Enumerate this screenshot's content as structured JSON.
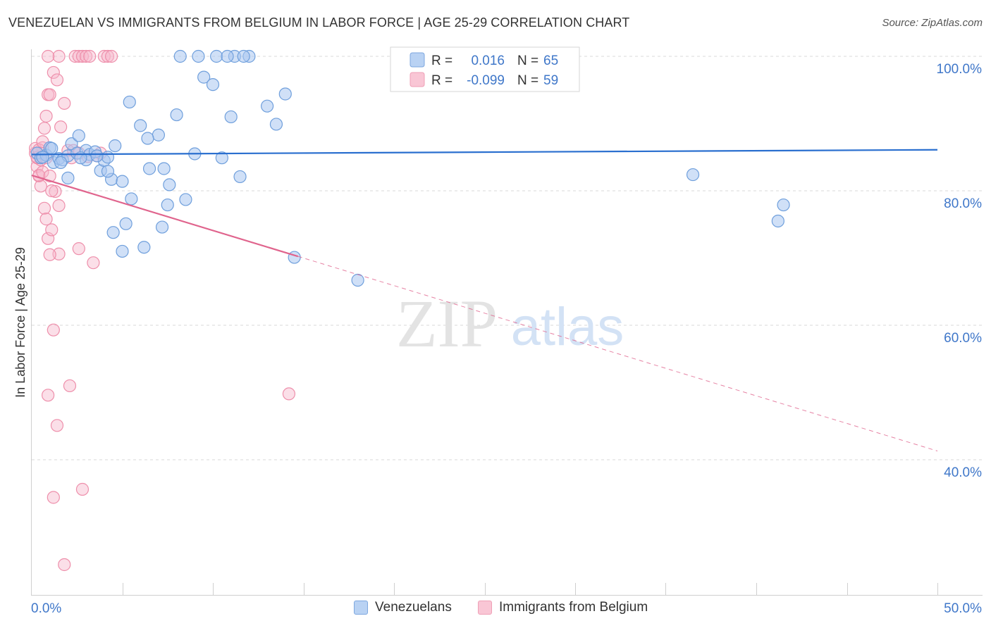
{
  "title": "VENEZUELAN VS IMMIGRANTS FROM BELGIUM IN LABOR FORCE | AGE 25-29 CORRELATION CHART",
  "source": "Source: ZipAtlas.com",
  "watermark": {
    "left": "ZIP",
    "right": "atlas"
  },
  "colors": {
    "blue_fill": "#a9c7f0",
    "blue_stroke": "#6f9fdc",
    "blue_line": "#2a6fcf",
    "pink_fill": "#f7b9cb",
    "pink_stroke": "#ee8fab",
    "pink_line": "#e0648d",
    "axis_text": "#3f77c9",
    "grid": "#d9d9d9"
  },
  "legend": {
    "rows": [
      {
        "r_label": "R =",
        "r_value": "0.016",
        "n_label": "N =",
        "n_value": "65",
        "series": "blue"
      },
      {
        "r_label": "R =",
        "r_value": "-0.099",
        "n_label": "N =",
        "n_value": "59",
        "series": "pink"
      }
    ]
  },
  "bottom_legend": [
    {
      "label": "Venezuelans",
      "series": "blue"
    },
    {
      "label": "Immigrants from Belgium",
      "series": "pink"
    }
  ],
  "chart_data": {
    "type": "scatter",
    "title": "VENEZUELAN VS IMMIGRANTS FROM BELGIUM IN LABOR FORCE | AGE 25-29 CORRELATION CHART",
    "xlabel": "",
    "ylabel": "In Labor Force | Age 25-29",
    "xlim": [
      0,
      50
    ],
    "ylim": [
      22,
      102
    ],
    "x_tick_labels": [
      {
        "value": 0,
        "label": "0.0%"
      },
      {
        "value": 50,
        "label": "50.0%"
      }
    ],
    "y_tick_labels": [
      {
        "value": 100,
        "label": "100.0%"
      },
      {
        "value": 80,
        "label": "80.0%"
      },
      {
        "value": 60,
        "label": "60.0%"
      },
      {
        "value": 40,
        "label": "40.0%"
      }
    ],
    "series": [
      {
        "name": "Venezuelans",
        "color": "blue",
        "trend": {
          "x0": 0,
          "y0": 85.4,
          "x1": 50,
          "y1": 86.1,
          "dashed_from": null
        },
        "points": [
          [
            0.3,
            85.6
          ],
          [
            0.5,
            84.9
          ],
          [
            0.8,
            85.3
          ],
          [
            1.0,
            86.4
          ],
          [
            1.2,
            84.2
          ],
          [
            1.5,
            84.8
          ],
          [
            1.7,
            84.6
          ],
          [
            2.0,
            85.2
          ],
          [
            2.2,
            87.0
          ],
          [
            2.5,
            85.6
          ],
          [
            2.6,
            88.2
          ],
          [
            3.0,
            86.0
          ],
          [
            3.2,
            85.4
          ],
          [
            3.5,
            85.8
          ],
          [
            3.8,
            83.0
          ],
          [
            4.0,
            84.5
          ],
          [
            4.2,
            85.0
          ],
          [
            4.4,
            81.7
          ],
          [
            4.6,
            86.7
          ],
          [
            5.0,
            81.4
          ],
          [
            5.5,
            78.8
          ],
          [
            6.0,
            89.7
          ],
          [
            6.5,
            83.3
          ],
          [
            7.0,
            88.3
          ],
          [
            7.5,
            77.9
          ],
          [
            8.0,
            91.3
          ],
          [
            8.5,
            78.7
          ],
          [
            9.0,
            85.5
          ],
          [
            9.5,
            96.9
          ],
          [
            10.0,
            95.8
          ],
          [
            10.5,
            84.9
          ],
          [
            11.0,
            91.0
          ],
          [
            11.5,
            82.1
          ],
          [
            12.0,
            100.0
          ],
          [
            13.0,
            92.6
          ],
          [
            13.5,
            89.9
          ],
          [
            14.0,
            94.4
          ],
          [
            2.0,
            81.9
          ],
          [
            3.0,
            84.6
          ],
          [
            4.5,
            73.8
          ],
          [
            5.2,
            75.1
          ],
          [
            6.2,
            71.6
          ],
          [
            7.2,
            74.6
          ],
          [
            8.2,
            100.0
          ],
          [
            9.2,
            100.0
          ],
          [
            10.2,
            100.0
          ],
          [
            11.2,
            100.0
          ],
          [
            6.4,
            87.8
          ],
          [
            5.4,
            93.2
          ],
          [
            7.6,
            80.9
          ],
          [
            1.6,
            84.2
          ],
          [
            2.7,
            84.9
          ],
          [
            3.6,
            85.2
          ],
          [
            1.1,
            86.3
          ],
          [
            0.6,
            85.0
          ],
          [
            4.2,
            82.9
          ],
          [
            5.0,
            71.0
          ],
          [
            7.3,
            83.3
          ],
          [
            14.5,
            70.1
          ],
          [
            18.0,
            66.7
          ],
          [
            36.5,
            82.4
          ],
          [
            41.5,
            77.9
          ],
          [
            41.2,
            75.5
          ],
          [
            11.7,
            100.0
          ],
          [
            10.8,
            100.0
          ]
        ]
      },
      {
        "name": "Immigrants from Belgium",
        "color": "pink",
        "trend": {
          "x0": 0,
          "y0": 82.3,
          "x1": 50,
          "y1": 41.3,
          "dashed_from": 14.7
        },
        "points": [
          [
            0.2,
            85.6
          ],
          [
            0.3,
            83.6
          ],
          [
            0.4,
            82.2
          ],
          [
            0.5,
            84.6
          ],
          [
            0.6,
            86.4
          ],
          [
            0.7,
            89.3
          ],
          [
            0.8,
            91.1
          ],
          [
            0.9,
            94.3
          ],
          [
            1.0,
            94.3
          ],
          [
            1.2,
            97.6
          ],
          [
            1.4,
            96.5
          ],
          [
            1.6,
            89.5
          ],
          [
            1.8,
            93.0
          ],
          [
            2.0,
            86.0
          ],
          [
            2.2,
            84.9
          ],
          [
            2.4,
            100.0
          ],
          [
            2.6,
            100.0
          ],
          [
            2.8,
            100.0
          ],
          [
            3.0,
            100.0
          ],
          [
            3.2,
            100.0
          ],
          [
            3.4,
            69.3
          ],
          [
            3.6,
            85.2
          ],
          [
            3.8,
            85.6
          ],
          [
            4.0,
            100.0
          ],
          [
            4.2,
            100.0
          ],
          [
            4.4,
            100.0
          ],
          [
            0.3,
            84.9
          ],
          [
            0.5,
            80.7
          ],
          [
            0.7,
            77.4
          ],
          [
            0.9,
            72.9
          ],
          [
            1.1,
            74.2
          ],
          [
            1.3,
            79.9
          ],
          [
            1.5,
            70.6
          ],
          [
            0.4,
            82.3
          ],
          [
            0.6,
            82.8
          ],
          [
            0.8,
            75.8
          ],
          [
            1.0,
            70.5
          ],
          [
            1.2,
            59.3
          ],
          [
            0.9,
            49.6
          ],
          [
            2.1,
            51.0
          ],
          [
            1.4,
            45.1
          ],
          [
            2.8,
            35.6
          ],
          [
            1.2,
            34.4
          ],
          [
            1.8,
            24.4
          ],
          [
            2.6,
            71.4
          ],
          [
            1.1,
            80.0
          ],
          [
            1.5,
            77.8
          ],
          [
            0.2,
            86.3
          ],
          [
            0.3,
            85.0
          ],
          [
            0.4,
            86.1
          ],
          [
            0.6,
            87.3
          ],
          [
            0.8,
            84.9
          ],
          [
            1.0,
            82.2
          ],
          [
            2.3,
            86.0
          ],
          [
            3.1,
            85.1
          ],
          [
            14.2,
            49.8
          ],
          [
            1.5,
            100.0
          ],
          [
            0.9,
            100.0
          ],
          [
            2.6,
            85.6
          ]
        ]
      }
    ]
  }
}
